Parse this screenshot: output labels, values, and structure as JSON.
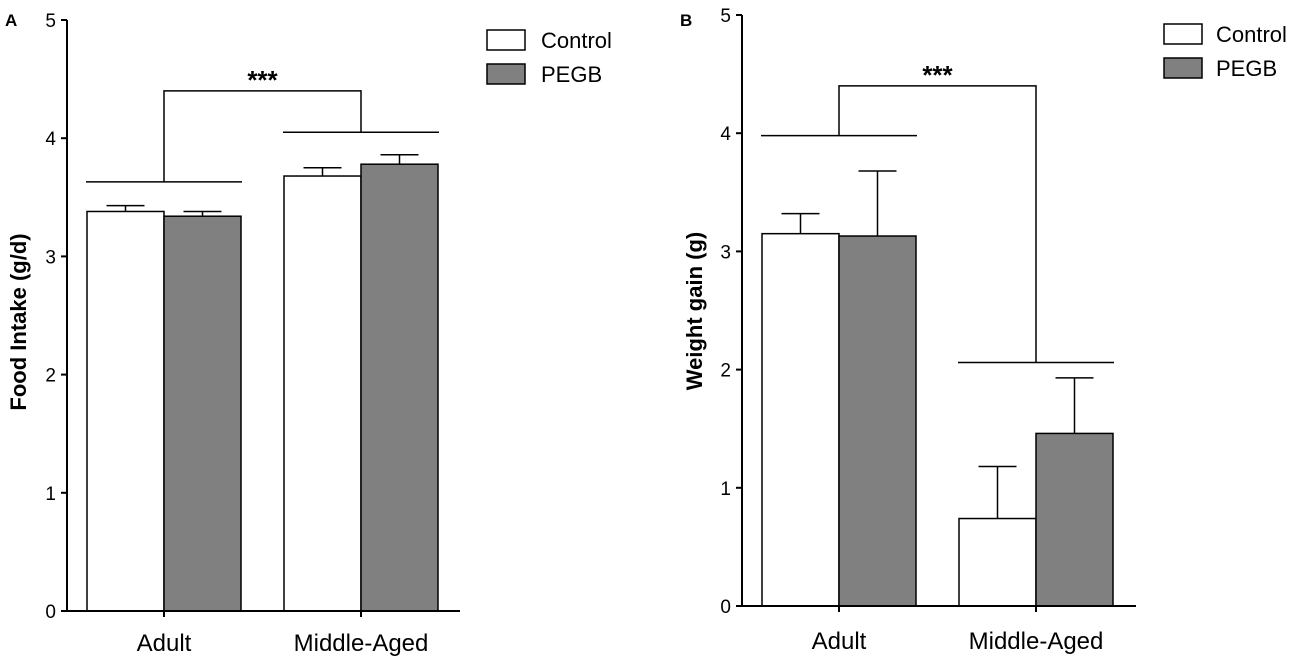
{
  "chart_data": [
    {
      "panel": "A",
      "type": "bar",
      "categories": [
        "Adult",
        "Middle-Aged"
      ],
      "series": [
        {
          "name": "Control",
          "color": "#ffffff",
          "values": [
            3.38,
            3.68
          ],
          "errors": [
            0.05,
            0.07
          ]
        },
        {
          "name": "PEGB",
          "color": "#808080",
          "values": [
            3.34,
            3.78
          ],
          "errors": [
            0.04,
            0.08
          ]
        }
      ],
      "ylabel": "Food Intake (g/d)",
      "xlabel": "",
      "ylim": [
        0,
        5
      ],
      "yticks": [
        "0",
        "1",
        "2",
        "3",
        "4",
        "5"
      ],
      "legend": "top-right",
      "significance": {
        "label": "***",
        "left_level": 3.63,
        "right_level": 4.05,
        "top_level": 4.4
      }
    },
    {
      "panel": "B",
      "type": "bar",
      "categories": [
        "Adult",
        "Middle-Aged"
      ],
      "series": [
        {
          "name": "Control",
          "color": "#ffffff",
          "values": [
            3.15,
            0.74
          ],
          "errors": [
            0.17,
            0.44
          ]
        },
        {
          "name": "PEGB",
          "color": "#808080",
          "values": [
            3.13,
            1.46
          ],
          "errors": [
            0.55,
            0.47
          ]
        }
      ],
      "ylabel": "Weight gain (g)",
      "xlabel": "",
      "ylim": [
        0,
        5
      ],
      "yticks": [
        "0",
        "1",
        "2",
        "3",
        "4",
        "5"
      ],
      "legend": "top-right",
      "significance": {
        "label": "***",
        "left_level": 3.98,
        "right_level": 2.06,
        "top_level": 4.4
      }
    }
  ]
}
